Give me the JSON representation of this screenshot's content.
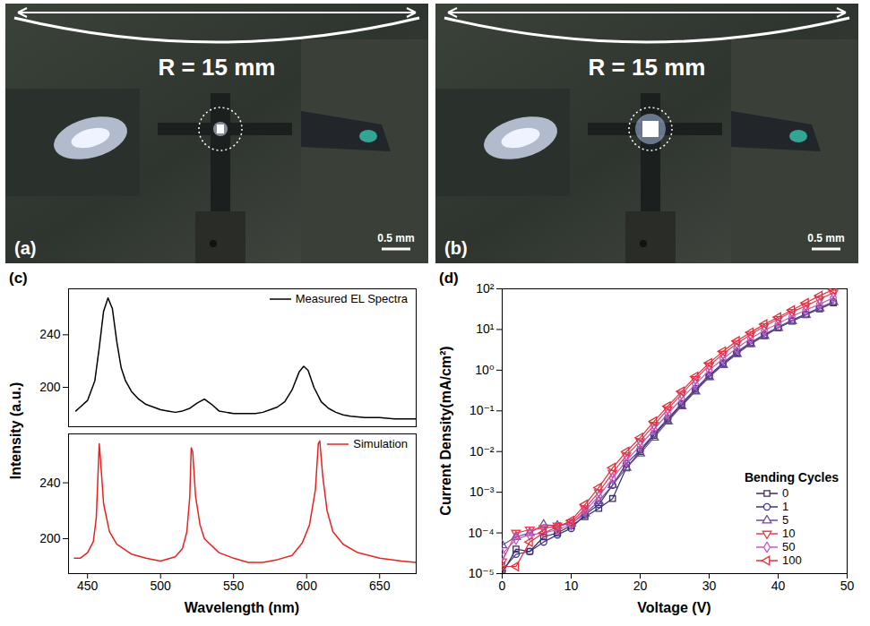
{
  "photos": [
    {
      "label": "(a)",
      "annotation": "R = 15 mm",
      "scale_bar": "0.5 mm"
    },
    {
      "label": "(b)",
      "annotation": "R = 15 mm",
      "scale_bar": "0.5 mm"
    }
  ],
  "chart_data": [
    {
      "type": "line",
      "panel_label": "(c)",
      "xlabel": "Wavelength (nm)",
      "ylabel": "Intensity (a.u.)",
      "xlim": [
        437,
        675
      ],
      "xticks": [
        450,
        500,
        550,
        600,
        650
      ],
      "grid": false,
      "legend": "upper right",
      "subplots": [
        {
          "ylim": [
            170,
            275
          ],
          "yticks": [
            200,
            240
          ],
          "series": [
            {
              "name": "Measured EL Spectra",
              "color": "#000000",
              "line_style": "solid",
              "x": [
                442,
                445,
                450,
                455,
                458,
                461,
                464,
                467,
                470,
                473,
                476,
                480,
                485,
                490,
                495,
                500,
                505,
                510,
                515,
                520,
                525,
                530,
                535,
                540,
                545,
                550,
                555,
                560,
                565,
                570,
                575,
                580,
                585,
                590,
                595,
                598,
                601,
                605,
                610,
                615,
                620,
                625,
                630,
                640,
                650,
                660,
                670,
                675
              ],
              "values": [
                182,
                185,
                190,
                205,
                230,
                258,
                268,
                260,
                235,
                215,
                205,
                197,
                191,
                187,
                185,
                183,
                182,
                181,
                182,
                184,
                188,
                191,
                187,
                182,
                181,
                180,
                180,
                180,
                180,
                181,
                183,
                185,
                189,
                198,
                212,
                216,
                213,
                200,
                189,
                184,
                181,
                179,
                178,
                177,
                177,
                176,
                176,
                176
              ]
            }
          ]
        },
        {
          "ylim": [
            175,
            275
          ],
          "yticks": [
            200,
            240
          ],
          "series": [
            {
              "name": "Simulation",
              "color": "#e8231f",
              "line_style": "solid",
              "x": [
                441,
                445,
                450,
                454,
                456,
                458,
                459,
                461,
                465,
                470,
                480,
                490,
                500,
                510,
                515,
                518,
                520,
                521,
                522,
                524,
                527,
                530,
                540,
                550,
                560,
                570,
                580,
                590,
                597,
                602,
                606,
                608,
                609,
                611,
                614,
                618,
                625,
                635,
                650,
                665,
                675
              ],
              "values": [
                186,
                186,
                190,
                198,
                215,
                268,
                255,
                225,
                205,
                196,
                189,
                186,
                184,
                187,
                193,
                205,
                230,
                265,
                262,
                230,
                210,
                200,
                190,
                186,
                183,
                183,
                185,
                188,
                197,
                210,
                235,
                268,
                270,
                245,
                220,
                205,
                196,
                190,
                186,
                184,
                183
              ]
            }
          ]
        }
      ]
    },
    {
      "type": "line",
      "panel_label": "(d)",
      "xlabel": "Voltage (V)",
      "ylabel": "Current Density(mA/cm²)",
      "log": "y",
      "grid": false,
      "legend": "lower right",
      "legend_title": "Bending Cycles",
      "xlim": [
        0,
        50
      ],
      "xticks": [
        0,
        10,
        20,
        30,
        40,
        50
      ],
      "ylim": [
        1e-05,
        100
      ],
      "yticks": [
        {
          "value": 1e-05,
          "label": "10⁻⁵"
        },
        {
          "value": 0.0001,
          "label": "10⁻⁴"
        },
        {
          "value": 0.001,
          "label": "10⁻³"
        },
        {
          "value": 0.01,
          "label": "10⁻²"
        },
        {
          "value": 0.1,
          "label": "10⁻¹"
        },
        {
          "value": 1,
          "label": "10⁰"
        },
        {
          "value": 10,
          "label": "10¹"
        },
        {
          "value": 100,
          "label": "10²"
        }
      ],
      "x": [
        0,
        2,
        4,
        6,
        8,
        10,
        12,
        14,
        16,
        18,
        20,
        22,
        24,
        26,
        28,
        30,
        32,
        34,
        36,
        38,
        40,
        42,
        44,
        46,
        48
      ],
      "series": [
        {
          "name": "0",
          "color": "#3d2a5e",
          "marker": "square",
          "line_style": "solid",
          "values": [
            1e-05,
            4e-05,
            3.5e-05,
            8e-05,
            0.0001,
            0.00015,
            0.00025,
            0.0004,
            0.0007,
            0.004,
            0.01,
            0.025,
            0.06,
            0.14,
            0.32,
            0.7,
            1.4,
            2.6,
            4.5,
            7,
            11,
            16,
            23,
            32,
            45
          ]
        },
        {
          "name": "1",
          "color": "#3b3580",
          "marker": "circle",
          "line_style": "solid",
          "values": [
            1.2e-05,
            3e-05,
            3.5e-05,
            6e-05,
            9e-05,
            0.00013,
            0.00028,
            0.0005,
            0.0015,
            0.005,
            0.011,
            0.027,
            0.065,
            0.15,
            0.35,
            0.75,
            1.5,
            2.8,
            4.8,
            7.5,
            11.5,
            17,
            24,
            34,
            48
          ]
        },
        {
          "name": "5",
          "color": "#6b4a9a",
          "marker": "triangle-up",
          "line_style": "solid",
          "values": [
            5e-05,
            8e-05,
            0.0001,
            0.00016,
            0.00015,
            0.00017,
            0.0003,
            0.0006,
            0.0015,
            0.004,
            0.009,
            0.022,
            0.055,
            0.13,
            0.3,
            0.68,
            1.35,
            2.5,
            4.4,
            7,
            11,
            16,
            23,
            33,
            47
          ]
        },
        {
          "name": "10",
          "color": "#f03c50",
          "marker": "triangle-down",
          "line_style": "solid",
          "values": [
            2e-05,
            0.0001,
            0.00012,
            0.00013,
            0.00015,
            0.00018,
            0.0004,
            0.001,
            0.003,
            0.008,
            0.018,
            0.045,
            0.11,
            0.26,
            0.6,
            1.3,
            2.5,
            4.5,
            7.5,
            12,
            18,
            27,
            38,
            55,
            80
          ]
        },
        {
          "name": "50",
          "color": "#c05ac8",
          "marker": "diamond",
          "line_style": "solid",
          "values": [
            3e-05,
            7e-05,
            9e-05,
            0.0001,
            0.00012,
            0.00016,
            0.00035,
            0.0008,
            0.0022,
            0.006,
            0.014,
            0.035,
            0.085,
            0.2,
            0.45,
            1,
            1.9,
            3.5,
            6,
            9.5,
            14,
            21,
            30,
            42,
            60
          ]
        },
        {
          "name": "100",
          "color": "#e0303c",
          "marker": "triangle-left",
          "line_style": "solid",
          "values": [
            1.5e-05,
            1.5e-05,
            6e-05,
            0.0001,
            0.00014,
            0.0002,
            0.0005,
            0.0013,
            0.004,
            0.01,
            0.022,
            0.055,
            0.13,
            0.3,
            0.7,
            1.5,
            2.9,
            5.2,
            8.5,
            13.5,
            20,
            30,
            45,
            68,
            95
          ]
        }
      ]
    }
  ]
}
